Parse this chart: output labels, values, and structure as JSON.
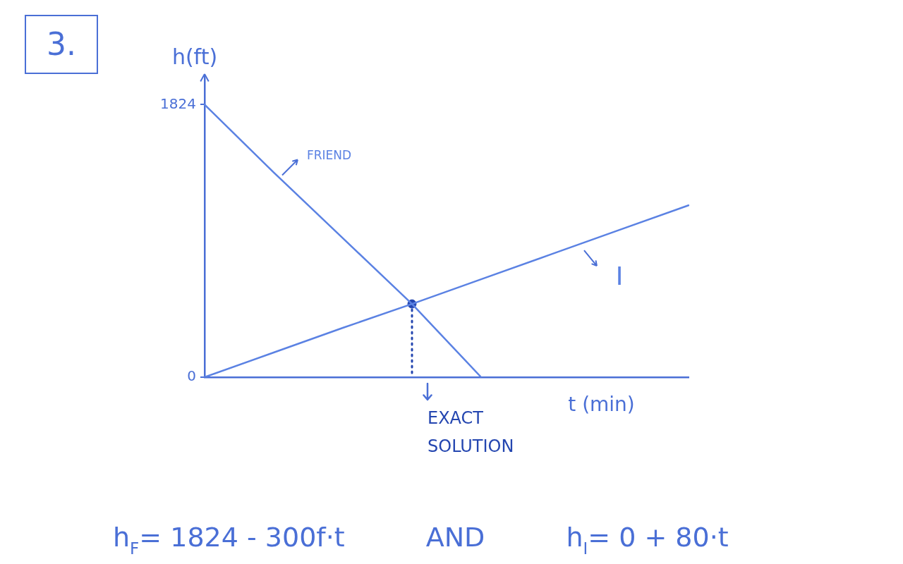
{
  "chart_data": {
    "type": "line",
    "title": "3.",
    "xlabel": "t (min)",
    "ylabel": "h(ft)",
    "categories": [
      null,
      null,
      null,
      null,
      null,
      null,
      null,
      null
    ],
    "series": [
      {
        "name": "FRIEND",
        "color": "#5b82e3",
        "values": [
          1824,
          1370,
          930,
          490,
          0,
          null,
          null,
          null
        ]
      },
      {
        "name": "I",
        "color": "#5b82e3",
        "values": [
          0,
          165,
          330,
          490,
          655,
          820,
          985,
          1150
        ]
      },
      {
        "name": "EXACT SOLUTION",
        "type": "lollipop",
        "color": "#2446b0",
        "line_style": "dotted",
        "values": [
          null,
          null,
          null,
          490,
          null,
          null,
          null,
          null
        ]
      }
    ],
    "ylim": [
      0,
      2000
    ],
    "yticks": [
      0,
      1824
    ],
    "tick_labels": "y",
    "annotations": [
      "h$_{F}$= 1824 - 300f·t",
      "AND",
      "h$_{I}$= 0 + 80·t"
    ]
  }
}
